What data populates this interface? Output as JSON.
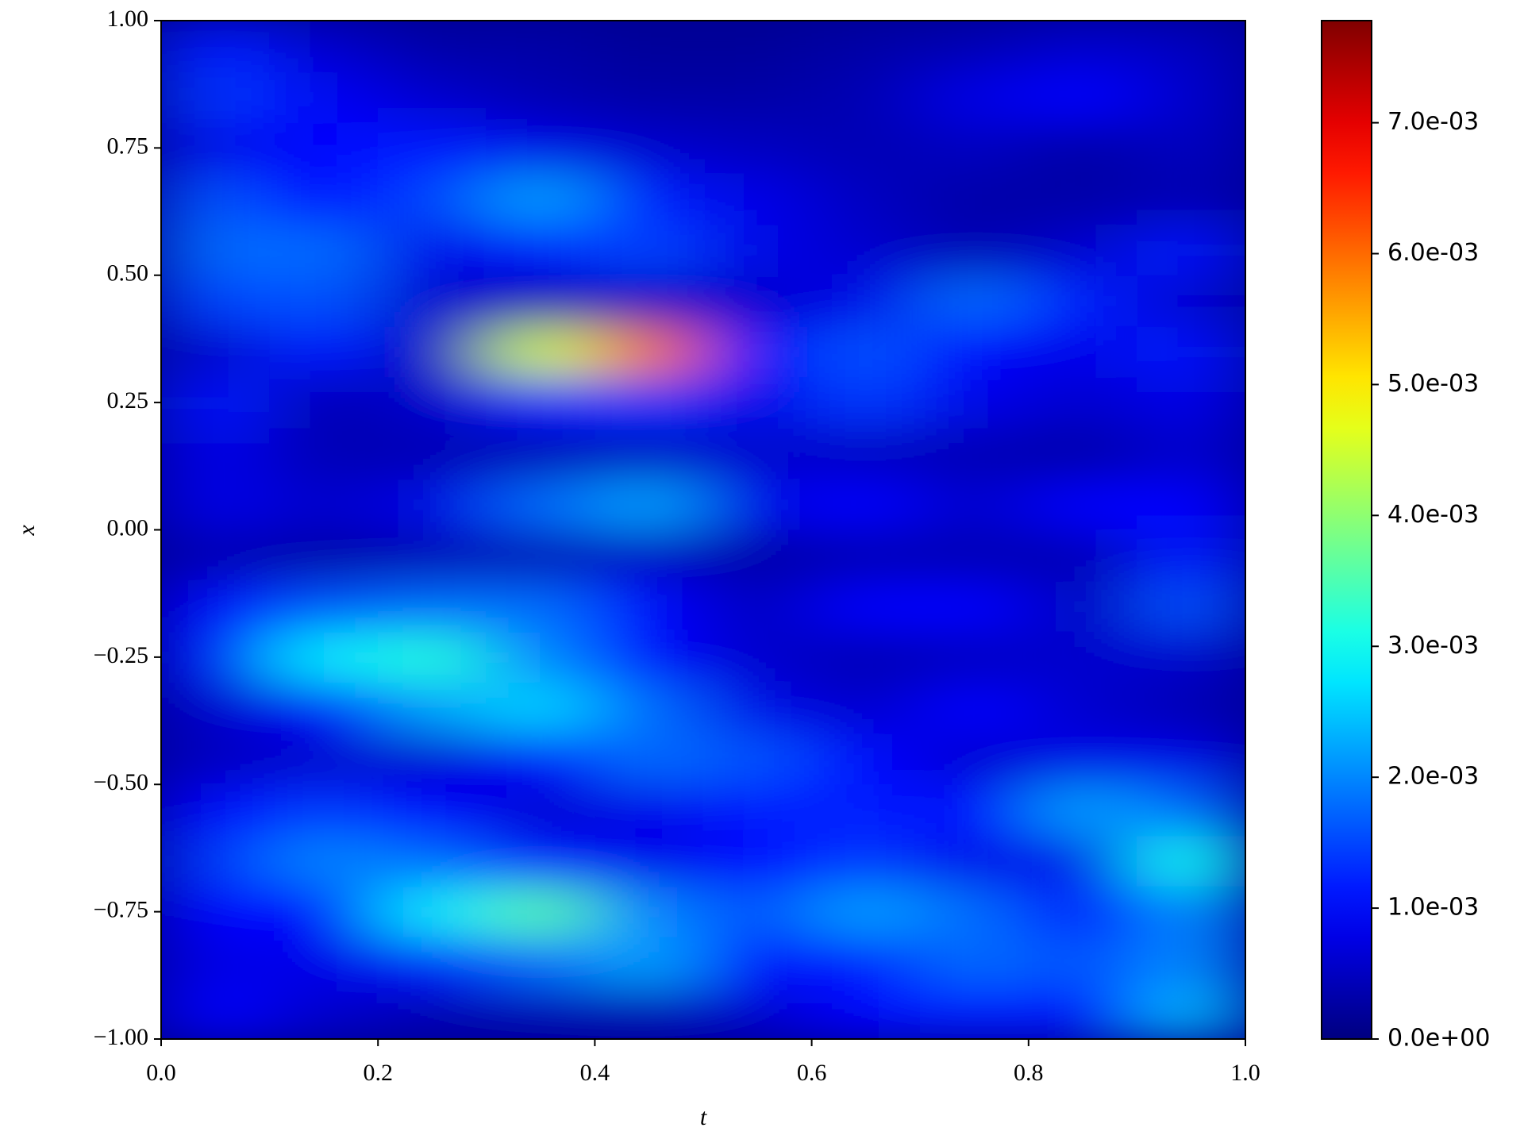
{
  "chart_data": {
    "type": "heatmap",
    "colormap": "jet",
    "xlabel": "t",
    "ylabel": "x",
    "xbins": [
      0,
      0.1,
      0.2,
      0.3,
      0.4,
      0.5,
      0.6,
      0.7,
      0.8,
      0.9,
      1
    ],
    "ybins": [
      -1,
      -0.9,
      -0.8,
      -0.7,
      -0.6,
      -0.5,
      -0.4,
      -0.3,
      -0.2,
      -0.1,
      0,
      0.1,
      0.2,
      0.3,
      0.4,
      0.5,
      0.6,
      0.7,
      0.8,
      0.9,
      1
    ],
    "values": [
      [
        0.001,
        0.0006,
        0.0004,
        0.0004,
        0.0004,
        0.0006,
        0.001,
        0.0012,
        0.001,
        0.0024
      ],
      [
        0.0008,
        0.0008,
        0.0012,
        0.0018,
        0.0022,
        0.001,
        0.0012,
        0.0018,
        0.0016,
        0.002
      ],
      [
        0.001,
        0.001,
        0.0028,
        0.0036,
        0.002,
        0.0016,
        0.0022,
        0.0018,
        0.001,
        0.002
      ],
      [
        0.0014,
        0.002,
        0.0018,
        0.0012,
        0.0008,
        0.001,
        0.0014,
        0.0008,
        0.0008,
        0.003
      ],
      [
        0.001,
        0.0014,
        0.001,
        0.0006,
        0.0008,
        0.0012,
        0.0012,
        0.001,
        0.0022,
        0.0018
      ],
      [
        0.0005,
        0.0006,
        0.0006,
        0.001,
        0.0018,
        0.0016,
        0.001,
        0.0006,
        0.0008,
        0.0008
      ],
      [
        0.0006,
        0.001,
        0.0022,
        0.0026,
        0.0018,
        0.0008,
        0.0006,
        0.001,
        0.0006,
        0.0004
      ],
      [
        0.0012,
        0.0028,
        0.0032,
        0.002,
        0.001,
        0.0006,
        0.0004,
        0.0005,
        0.0006,
        0.0006
      ],
      [
        0.001,
        0.0016,
        0.0018,
        0.0018,
        0.001,
        0.0005,
        0.001,
        0.001,
        0.0005,
        0.0016
      ],
      [
        0.0004,
        0.0003,
        0.0004,
        0.0004,
        0.0005,
        0.0003,
        0.0004,
        0.0004,
        0.0004,
        0.0012
      ],
      [
        0.0008,
        0.0006,
        0.0008,
        0.0018,
        0.0022,
        0.0008,
        0.001,
        0.0006,
        0.001,
        0.001
      ],
      [
        0.0008,
        0.0004,
        0.0004,
        0.0004,
        0.0005,
        0.0006,
        0.0005,
        0.0004,
        0.0003,
        0.0006
      ],
      [
        0.0012,
        0.0004,
        0.0006,
        0.0012,
        0.0014,
        0.0008,
        0.0014,
        0.0008,
        0.0006,
        0.0008
      ],
      [
        0.0006,
        0.0012,
        0.0005,
        0.0045,
        0.006,
        0.001,
        0.0016,
        0.001,
        0.0008,
        0.0012
      ],
      [
        0.0015,
        0.0016,
        0.0006,
        0.0004,
        0.0005,
        0.0006,
        0.0008,
        0.0018,
        0.0012,
        0.0006
      ],
      [
        0.0018,
        0.0018,
        0.0008,
        0.0012,
        0.0015,
        0.0008,
        0.0006,
        0.0004,
        0.0006,
        0.0012
      ],
      [
        0.0016,
        0.001,
        0.0015,
        0.0022,
        0.0012,
        0.0008,
        0.0005,
        0.0003,
        0.0003,
        0.0004
      ],
      [
        0.0008,
        0.001,
        0.0012,
        0.0008,
        0.0006,
        0.0005,
        0.0004,
        0.0005,
        0.0003,
        0.0005
      ],
      [
        0.0014,
        0.0009,
        0.0006,
        0.0004,
        0.0003,
        0.0003,
        0.0004,
        0.0008,
        0.001,
        0.0006
      ],
      [
        0.0012,
        0.0006,
        0.0003,
        0.0003,
        0.0002,
        0.0002,
        0.0003,
        0.0004,
        0.0006,
        0.0005
      ]
    ],
    "xlim": [
      0,
      1
    ],
    "ylim": [
      -1,
      1
    ],
    "zlim": [
      0,
      0.00778
    ],
    "xticks": [
      {
        "value": 0,
        "label": "0.0"
      },
      0.2,
      0.4,
      0.6,
      0.8,
      {
        "value": 1,
        "label": "1.0"
      }
    ],
    "yticks": [
      {
        "value": -1,
        "label": "−1.00"
      },
      {
        "value": -0.75,
        "label": "−0.75"
      },
      {
        "value": -0.5,
        "label": "−0.50"
      },
      {
        "value": -0.25,
        "label": "−0.25"
      },
      {
        "value": 0,
        "label": "0.00"
      },
      0.25,
      {
        "value": 0.5,
        "label": "0.50"
      },
      0.75,
      {
        "value": 1,
        "label": "1.00"
      }
    ],
    "zticks": [
      {
        "value": 0,
        "label": "0.0e+00"
      },
      {
        "value": 0.001,
        "label": "1.0e-03"
      },
      {
        "value": 0.002,
        "label": "2.0e-03"
      },
      {
        "value": 0.003,
        "label": "3.0e-03"
      },
      {
        "value": 0.004,
        "label": "4.0e-03"
      },
      {
        "value": 0.005,
        "label": "5.0e-03"
      },
      {
        "value": 0.006,
        "label": "6.0e-03"
      },
      {
        "value": 0.007,
        "label": "7.0e-03"
      }
    ]
  }
}
